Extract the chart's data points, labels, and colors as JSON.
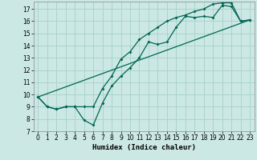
{
  "xlabel": "Humidex (Indice chaleur)",
  "background_color": "#cce8e4",
  "grid_color": "#aad4cc",
  "line_color": "#006655",
  "xlim": [
    -0.5,
    23.5
  ],
  "ylim": [
    7,
    17.6
  ],
  "xticks": [
    0,
    1,
    2,
    3,
    4,
    5,
    6,
    7,
    8,
    9,
    10,
    11,
    12,
    13,
    14,
    15,
    16,
    17,
    18,
    19,
    20,
    21,
    22,
    23
  ],
  "yticks": [
    7,
    8,
    9,
    10,
    11,
    12,
    13,
    14,
    15,
    16,
    17
  ],
  "line1_x": [
    0,
    1,
    2,
    3,
    4,
    5,
    6,
    7,
    8,
    9,
    10,
    11,
    12,
    13,
    14,
    15,
    16,
    17,
    18,
    19,
    20,
    21,
    22,
    23
  ],
  "line1_y": [
    9.8,
    9.0,
    8.8,
    9.0,
    9.0,
    7.9,
    7.5,
    9.3,
    10.7,
    11.5,
    12.2,
    13.0,
    14.3,
    14.1,
    14.3,
    15.5,
    16.4,
    16.3,
    16.4,
    16.3,
    17.3,
    17.2,
    16.0,
    16.1
  ],
  "line2_x": [
    0,
    1,
    2,
    3,
    4,
    5,
    6,
    7,
    8,
    9,
    10,
    11,
    12,
    13,
    14,
    15,
    16,
    17,
    18,
    19,
    20,
    21,
    22,
    23
  ],
  "line2_y": [
    9.8,
    9.0,
    8.8,
    9.0,
    9.0,
    9.0,
    9.0,
    10.5,
    11.5,
    12.9,
    13.5,
    14.5,
    15.0,
    15.5,
    16.0,
    16.3,
    16.5,
    16.8,
    17.0,
    17.4,
    17.5,
    17.5,
    16.0,
    16.1
  ],
  "line3_x": [
    0,
    23
  ],
  "line3_y": [
    9.8,
    16.1
  ]
}
